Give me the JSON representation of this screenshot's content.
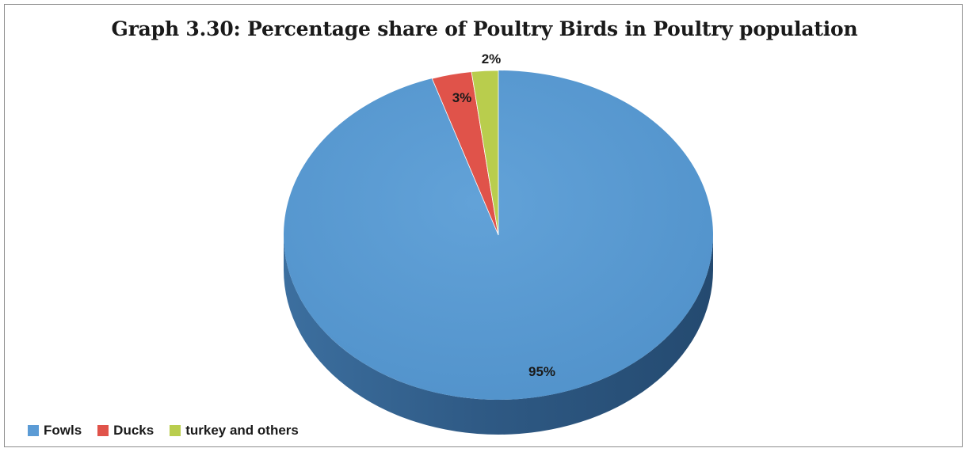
{
  "chart_data": {
    "type": "pie",
    "title": "Graph 3.30: Percentage share of Poultry Birds in Poultry population",
    "slices": [
      {
        "name": "Fowls",
        "value": 95,
        "label": "95%",
        "color": "#5b9bd5"
      },
      {
        "name": "Ducks",
        "value": 3,
        "label": "3%",
        "color": "#e0534a"
      },
      {
        "name": "turkey and others",
        "value": 2,
        "label": "2%",
        "color": "#b9cd4d"
      }
    ],
    "legend_position": "bottom-left",
    "style": "3d"
  }
}
